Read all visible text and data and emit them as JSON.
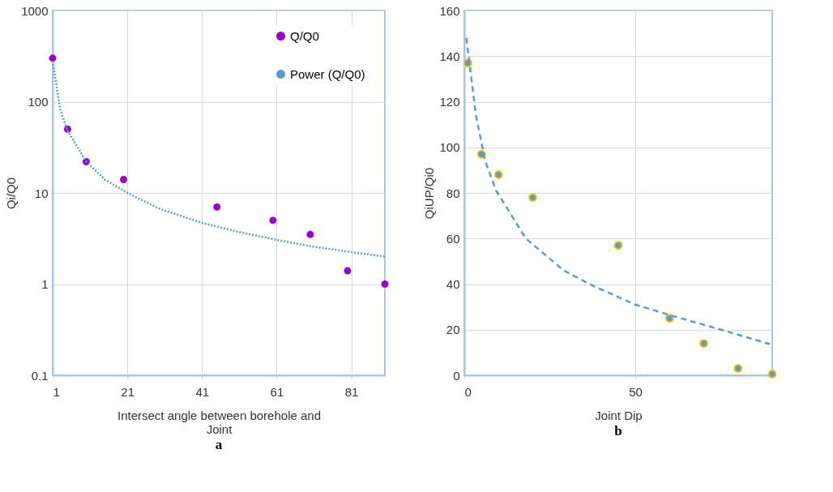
{
  "chart_data": [
    {
      "type": "scatter",
      "xlabel": "Intersect angle between borehole and Joint",
      "ylabel": "Qi/Q0",
      "annotations": [
        "a"
      ],
      "xlim": [
        1,
        90
      ],
      "xticks": [
        1,
        21,
        41,
        61,
        81
      ],
      "ylim": [
        0.1,
        1000
      ],
      "yticks": [
        0.1,
        1,
        10,
        100,
        1000
      ],
      "log": "y",
      "grid": true,
      "legend": "top right",
      "series": [
        {
          "name": "Q/Q0",
          "color": "#9900cc",
          "marker": "circle",
          "x": [
            1,
            5,
            10,
            20,
            45,
            60,
            70,
            80,
            90
          ],
          "values": [
            300,
            50,
            22,
            14,
            7,
            5,
            3.5,
            1.4,
            1
          ]
        },
        {
          "name": "Power (Q/Q0)",
          "type": "line",
          "color": "#5b9bd5",
          "line_style": "dotted",
          "x": [
            1,
            3,
            5,
            10,
            15,
            21,
            30,
            41,
            50,
            61,
            70,
            81,
            90
          ],
          "values": [
            280,
            83,
            48,
            22,
            14,
            10,
            6.6,
            4.7,
            3.8,
            3.05,
            2.6,
            2.25,
            2
          ]
        }
      ]
    },
    {
      "type": "scatter",
      "xlabel": "Joint Dip",
      "ylabel": "QiUP/Qi0",
      "annotations": [
        "b"
      ],
      "xlim": [
        0,
        90
      ],
      "xticks": [
        0,
        50
      ],
      "ylim": [
        0,
        160
      ],
      "yticks": [
        0,
        20,
        40,
        60,
        80,
        100,
        120,
        140,
        160
      ],
      "grid": true,
      "series": [
        {
          "color": "#5b9bd5",
          "marker": "circle",
          "x": [
            1,
            5,
            10,
            20,
            45,
            60,
            70,
            80,
            90
          ],
          "values": [
            137,
            97,
            88,
            78,
            57,
            25,
            14,
            3,
            0.5
          ]
        },
        {
          "type": "line",
          "color": "#5b9bd5",
          "line_style": "dashed",
          "x": [
            0.6,
            3.4,
            6.1,
            9.3,
            18,
            29,
            38,
            50,
            61,
            75,
            89.3
          ],
          "values": [
            148,
            114,
            94,
            81,
            60,
            46,
            39,
            31,
            26,
            20,
            13.7
          ]
        }
      ]
    }
  ]
}
